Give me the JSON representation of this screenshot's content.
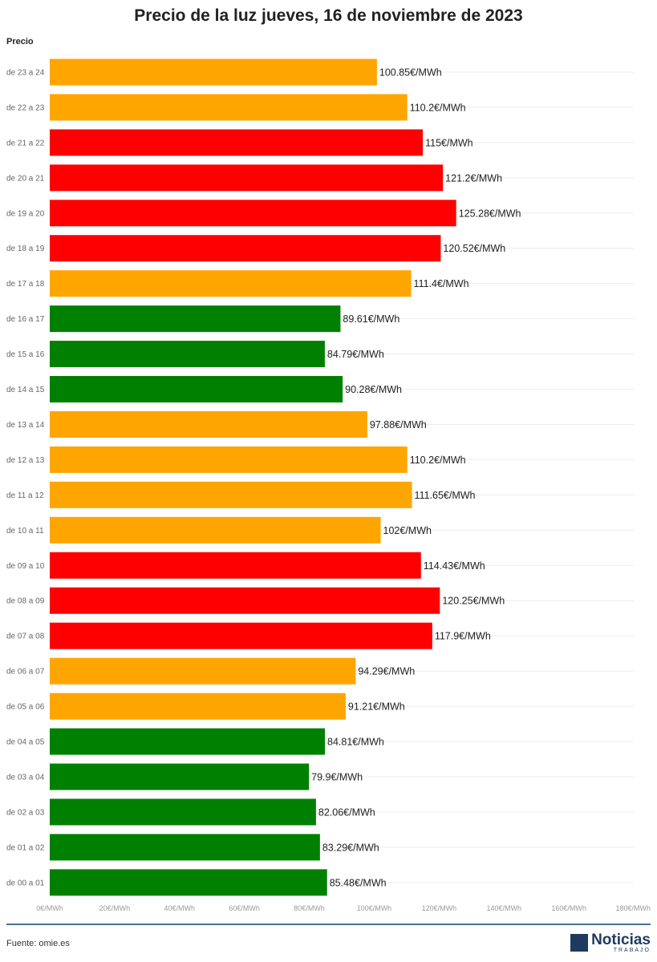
{
  "title": "Precio de la luz jueves, 16 de noviembre de 2023",
  "axis_title": "Precio",
  "source": "Fuente: omie.es",
  "logo": {
    "name": "Noticias",
    "sub": "TRABAJO"
  },
  "colors": {
    "high": "#ff0000",
    "mid": "#ffa500",
    "low": "#008000",
    "footer_line": "#4a6f96",
    "brand": "#1e3a5f"
  },
  "chart_data": {
    "type": "bar",
    "orientation": "horizontal",
    "title": "Precio de la luz jueves, 16 de noviembre de 2023",
    "ylabel": "Precio",
    "xlim": [
      0,
      180
    ],
    "x_ticks": [
      "0€/MWh",
      "20€/MWh",
      "40€/MWh",
      "60€/MWh",
      "80€/MWh",
      "100€/MWh",
      "120€/MWh",
      "140€/MWh",
      "160€/MWh",
      "180€/MWh"
    ],
    "grid": true,
    "categories": [
      "de 23 a 24",
      "de 22 a 23",
      "de 21 a 22",
      "de 20 a 21",
      "de 19 a 20",
      "de 18 a 19",
      "de 17 a 18",
      "de 16 a 17",
      "de 15 a 16",
      "de 14 a 15",
      "de 13 a 14",
      "de 12 a 13",
      "de 11 a 12",
      "de 10 a 11",
      "de 09 a 10",
      "de 08 a 09",
      "de 07 a 08",
      "de 06 a 07",
      "de 05 a 06",
      "de 04 a 05",
      "de 03 a 04",
      "de 02 a 03",
      "de 01 a 02",
      "de 00 a 01"
    ],
    "values": [
      100.85,
      110.2,
      115,
      121.2,
      125.28,
      120.52,
      111.4,
      89.61,
      84.79,
      90.28,
      97.88,
      110.2,
      111.65,
      102,
      114.43,
      120.25,
      117.9,
      94.29,
      91.21,
      84.81,
      79.9,
      82.06,
      83.29,
      85.48
    ],
    "labels": [
      "100.85€/MWh",
      "110.2€/MWh",
      "115€/MWh",
      "121.2€/MWh",
      "125.28€/MWh",
      "120.52€/MWh",
      "111.4€/MWh",
      "89.61€/MWh",
      "84.79€/MWh",
      "90.28€/MWh",
      "97.88€/MWh",
      "110.2€/MWh",
      "111.65€/MWh",
      "102€/MWh",
      "114.43€/MWh",
      "120.25€/MWh",
      "117.9€/MWh",
      "94.29€/MWh",
      "91.21€/MWh",
      "84.81€/MWh",
      "79.9€/MWh",
      "82.06€/MWh",
      "83.29€/MWh",
      "85.48€/MWh"
    ],
    "bar_colors": [
      "mid",
      "mid",
      "high",
      "high",
      "high",
      "high",
      "mid",
      "low",
      "low",
      "low",
      "mid",
      "mid",
      "mid",
      "mid",
      "high",
      "high",
      "high",
      "mid",
      "mid",
      "low",
      "low",
      "low",
      "low",
      "low"
    ]
  }
}
